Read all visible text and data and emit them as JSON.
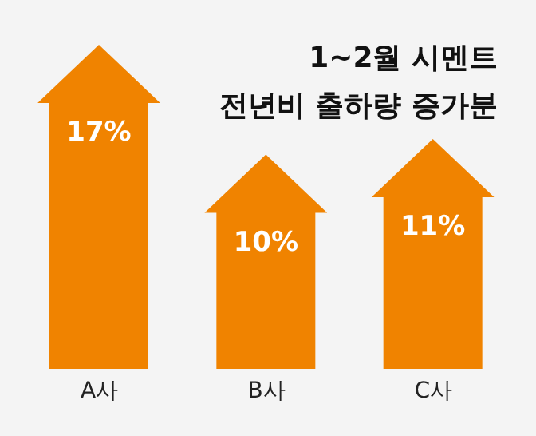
{
  "chart_data": {
    "type": "bar",
    "title": "1~2월 시멘트\n전년비 출하량 증가분",
    "categories": [
      "A사",
      "B사",
      "C사"
    ],
    "values": [
      17,
      10,
      11
    ],
    "value_labels": [
      "17%",
      "10%",
      "11%"
    ],
    "color": "#f08300",
    "data_labels": true
  }
}
